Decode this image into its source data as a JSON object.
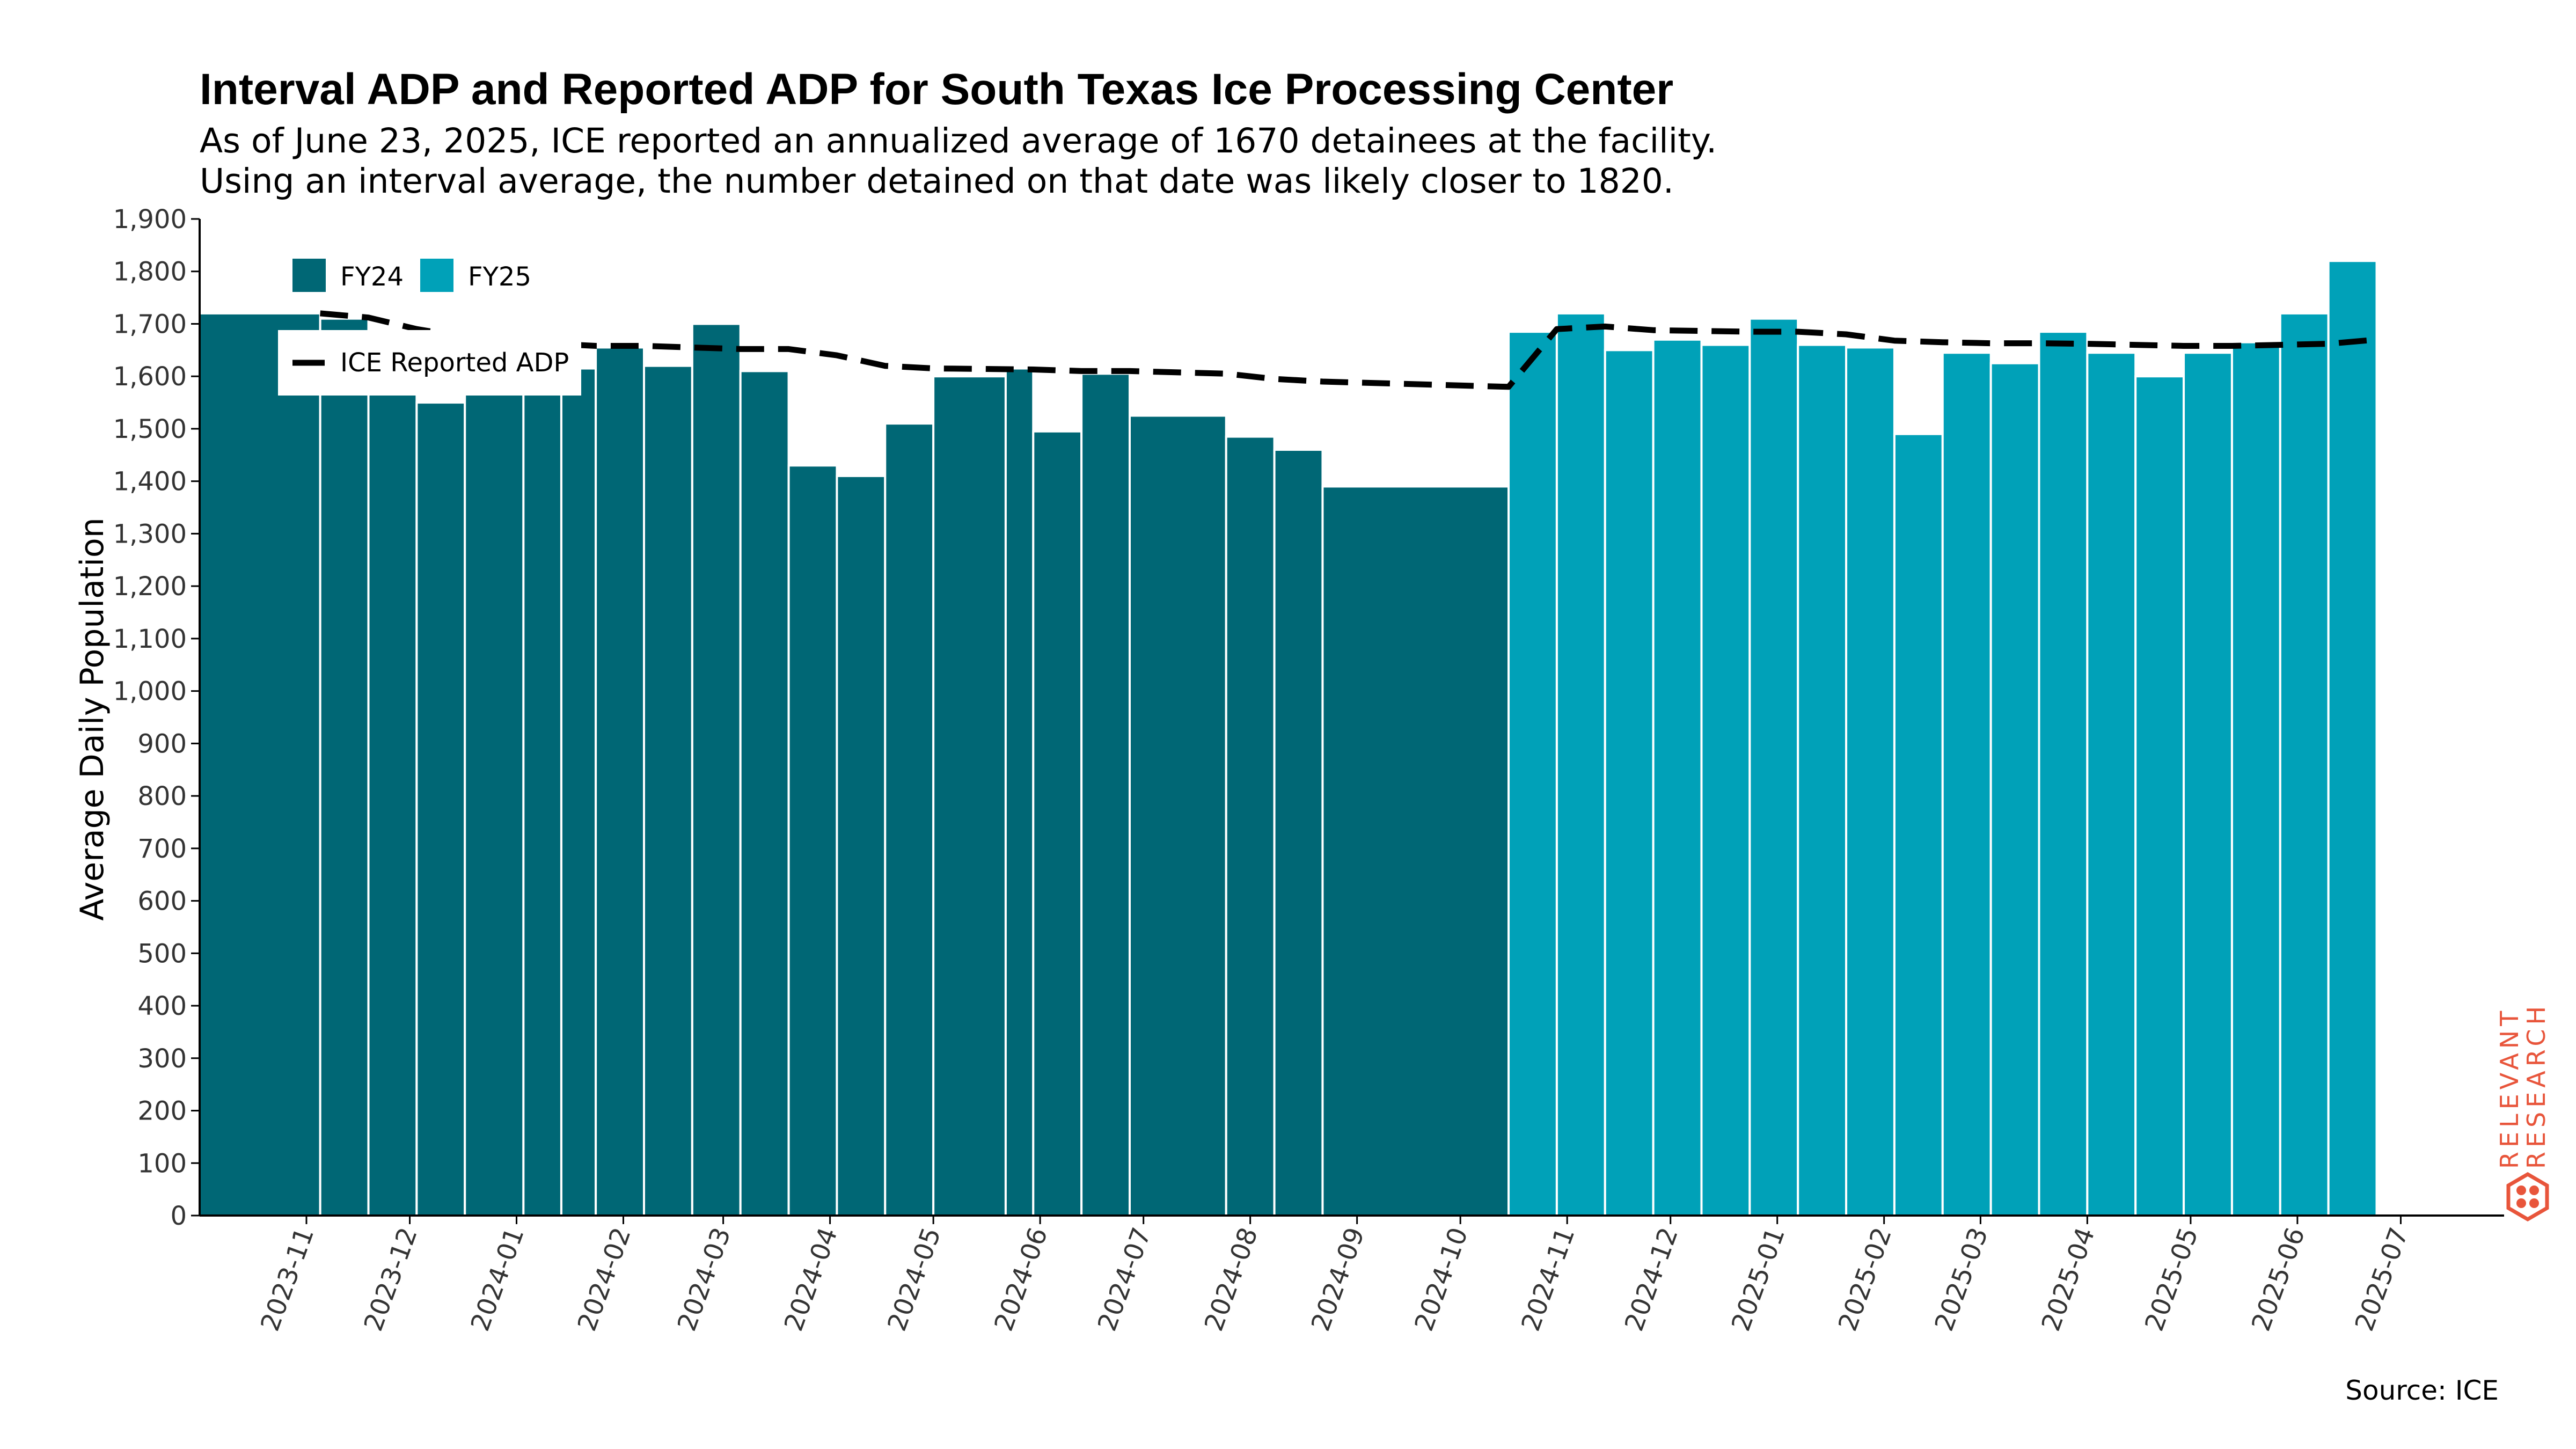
{
  "chart_data": {
    "type": "bar",
    "title": "Interval ADP and Reported ADP for South Texas Ice Processing Center",
    "subtitle_lines": [
      "As of June 23, 2025, ICE reported an annualized average of 1670 detainees at the facility.",
      "Using an interval average, the number detained on that date was likely closer to 1820."
    ],
    "ylabel": "Average Daily Population",
    "xlabel": "",
    "ylim": [
      0,
      1900
    ],
    "yticks": [
      0,
      100,
      200,
      300,
      400,
      500,
      600,
      700,
      800,
      900,
      1000,
      1100,
      1200,
      1300,
      1400,
      1500,
      1600,
      1700,
      1800,
      1900
    ],
    "ytick_labels": [
      "0",
      "100",
      "200",
      "300",
      "400",
      "500",
      "600",
      "700",
      "800",
      "900",
      "1,000",
      "1,100",
      "1,200",
      "1,300",
      "1,400",
      "1,500",
      "1,600",
      "1,700",
      "1,800",
      "1,900"
    ],
    "xlim": [
      "2023-10-01",
      "2025-07-31"
    ],
    "xticks": [
      "2023-11-01",
      "2023-12-01",
      "2024-01-01",
      "2024-02-01",
      "2024-03-01",
      "2024-04-01",
      "2024-05-01",
      "2024-06-01",
      "2024-07-01",
      "2024-08-01",
      "2024-09-01",
      "2024-10-01",
      "2024-11-01",
      "2024-12-01",
      "2025-01-01",
      "2025-02-01",
      "2025-03-01",
      "2025-04-01",
      "2025-05-01",
      "2025-06-01",
      "2025-07-01"
    ],
    "xtick_labels": [
      "2023-11",
      "2023-12",
      "2024-01",
      "2024-02",
      "2024-03",
      "2024-04",
      "2024-05",
      "2024-06",
      "2024-07",
      "2024-08",
      "2024-09",
      "2024-10",
      "2024-11",
      "2024-12",
      "2025-01",
      "2025-02",
      "2025-03",
      "2025-04",
      "2025-05",
      "2025-06",
      "2025-07"
    ],
    "legend": {
      "placement": "top-left",
      "bar_entries": [
        "FY24",
        "FY25"
      ],
      "line_entry": "ICE Reported ADP"
    },
    "colors": {
      "FY24": "#006775",
      "FY25": "#00a1b8",
      "line": "#000000"
    },
    "series": [
      {
        "name": "FY24",
        "intervals": [
          {
            "start": "2023-10-01",
            "end": "2023-11-05",
            "value": 1720
          },
          {
            "start": "2023-11-05",
            "end": "2023-11-19",
            "value": 1710
          },
          {
            "start": "2023-11-19",
            "end": "2023-12-03",
            "value": 1665
          },
          {
            "start": "2023-12-03",
            "end": "2023-12-17",
            "value": 1550
          },
          {
            "start": "2023-12-17",
            "end": "2024-01-03",
            "value": 1625
          },
          {
            "start": "2024-01-03",
            "end": "2024-01-14",
            "value": 1620
          },
          {
            "start": "2024-01-14",
            "end": "2024-01-24",
            "value": 1615
          },
          {
            "start": "2024-01-24",
            "end": "2024-02-07",
            "value": 1655
          },
          {
            "start": "2024-02-07",
            "end": "2024-02-21",
            "value": 1620
          },
          {
            "start": "2024-02-21",
            "end": "2024-03-06",
            "value": 1700
          },
          {
            "start": "2024-03-06",
            "end": "2024-03-20",
            "value": 1610
          },
          {
            "start": "2024-03-20",
            "end": "2024-04-03",
            "value": 1430
          },
          {
            "start": "2024-04-03",
            "end": "2024-04-17",
            "value": 1410
          },
          {
            "start": "2024-04-17",
            "end": "2024-05-01",
            "value": 1510
          },
          {
            "start": "2024-05-01",
            "end": "2024-05-22",
            "value": 1600
          },
          {
            "start": "2024-05-22",
            "end": "2024-05-30",
            "value": 1615
          },
          {
            "start": "2024-05-30",
            "end": "2024-06-13",
            "value": 1495
          },
          {
            "start": "2024-06-13",
            "end": "2024-06-27",
            "value": 1605
          },
          {
            "start": "2024-06-27",
            "end": "2024-07-25",
            "value": 1525
          },
          {
            "start": "2024-07-25",
            "end": "2024-08-08",
            "value": 1485
          },
          {
            "start": "2024-08-08",
            "end": "2024-08-22",
            "value": 1460
          },
          {
            "start": "2024-08-22",
            "end": "2024-10-15",
            "value": 1390
          }
        ]
      },
      {
        "name": "FY25",
        "intervals": [
          {
            "start": "2024-10-15",
            "end": "2024-10-29",
            "value": 1685
          },
          {
            "start": "2024-10-29",
            "end": "2024-11-12",
            "value": 1720
          },
          {
            "start": "2024-11-12",
            "end": "2024-11-26",
            "value": 1650
          },
          {
            "start": "2024-11-26",
            "end": "2024-12-10",
            "value": 1670
          },
          {
            "start": "2024-12-10",
            "end": "2024-12-24",
            "value": 1660
          },
          {
            "start": "2024-12-24",
            "end": "2025-01-07",
            "value": 1710
          },
          {
            "start": "2025-01-07",
            "end": "2025-01-21",
            "value": 1660
          },
          {
            "start": "2025-01-21",
            "end": "2025-02-04",
            "value": 1655
          },
          {
            "start": "2025-02-04",
            "end": "2025-02-18",
            "value": 1490
          },
          {
            "start": "2025-02-18",
            "end": "2025-03-04",
            "value": 1645
          },
          {
            "start": "2025-03-04",
            "end": "2025-03-18",
            "value": 1625
          },
          {
            "start": "2025-03-18",
            "end": "2025-04-01",
            "value": 1685
          },
          {
            "start": "2025-04-01",
            "end": "2025-04-15",
            "value": 1645
          },
          {
            "start": "2025-04-15",
            "end": "2025-04-29",
            "value": 1600
          },
          {
            "start": "2025-04-29",
            "end": "2025-05-13",
            "value": 1645
          },
          {
            "start": "2025-05-13",
            "end": "2025-05-27",
            "value": 1665
          },
          {
            "start": "2025-05-27",
            "end": "2025-06-10",
            "value": 1720
          },
          {
            "start": "2025-06-10",
            "end": "2025-06-24",
            "value": 1820
          }
        ]
      },
      {
        "name": "ICE Reported ADP",
        "type": "line",
        "style": "dashed",
        "points": [
          {
            "x": "2023-11-05",
            "y": 1720
          },
          {
            "x": "2023-11-19",
            "y": 1712
          },
          {
            "x": "2023-12-03",
            "y": 1690
          },
          {
            "x": "2023-12-17",
            "y": 1675
          },
          {
            "x": "2024-01-03",
            "y": 1665
          },
          {
            "x": "2024-01-24",
            "y": 1658
          },
          {
            "x": "2024-02-07",
            "y": 1658
          },
          {
            "x": "2024-02-21",
            "y": 1655
          },
          {
            "x": "2024-03-06",
            "y": 1652
          },
          {
            "x": "2024-03-20",
            "y": 1652
          },
          {
            "x": "2024-04-03",
            "y": 1640
          },
          {
            "x": "2024-04-17",
            "y": 1620
          },
          {
            "x": "2024-05-01",
            "y": 1615
          },
          {
            "x": "2024-05-30",
            "y": 1613
          },
          {
            "x": "2024-06-13",
            "y": 1610
          },
          {
            "x": "2024-06-27",
            "y": 1610
          },
          {
            "x": "2024-07-25",
            "y": 1605
          },
          {
            "x": "2024-08-08",
            "y": 1595
          },
          {
            "x": "2024-08-22",
            "y": 1590
          },
          {
            "x": "2024-10-15",
            "y": 1580
          },
          {
            "x": "2024-10-29",
            "y": 1690
          },
          {
            "x": "2024-11-12",
            "y": 1695
          },
          {
            "x": "2024-11-26",
            "y": 1688
          },
          {
            "x": "2024-12-24",
            "y": 1685
          },
          {
            "x": "2025-01-07",
            "y": 1685
          },
          {
            "x": "2025-01-21",
            "y": 1680
          },
          {
            "x": "2025-02-04",
            "y": 1668
          },
          {
            "x": "2025-02-18",
            "y": 1665
          },
          {
            "x": "2025-03-04",
            "y": 1663
          },
          {
            "x": "2025-03-18",
            "y": 1663
          },
          {
            "x": "2025-04-01",
            "y": 1662
          },
          {
            "x": "2025-04-15",
            "y": 1660
          },
          {
            "x": "2025-04-29",
            "y": 1658
          },
          {
            "x": "2025-05-13",
            "y": 1658
          },
          {
            "x": "2025-05-27",
            "y": 1660
          },
          {
            "x": "2025-06-10",
            "y": 1662
          },
          {
            "x": "2025-06-24",
            "y": 1670
          }
        ]
      }
    ],
    "grid": false
  },
  "source_note": "Source: ICE",
  "brand": {
    "line1": "RELEVANT",
    "line2": "RESEARCH",
    "color": "#e8553b",
    "icon": "hexagon-dots-logo"
  }
}
